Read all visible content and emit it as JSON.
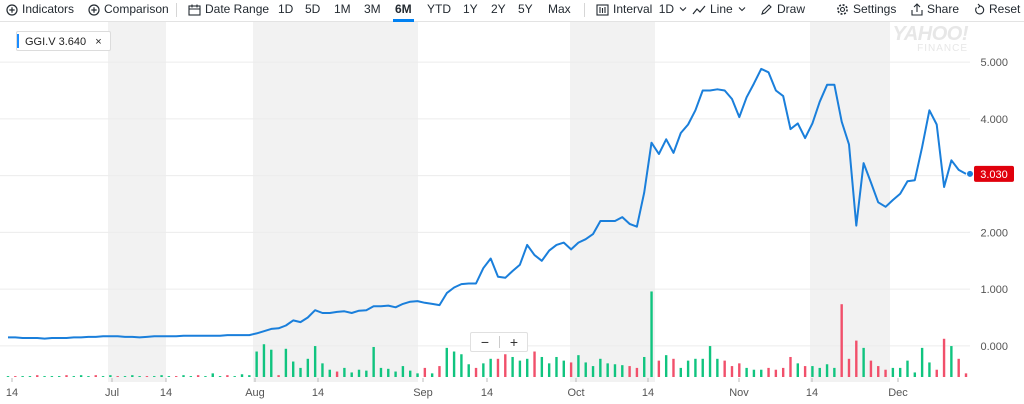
{
  "toolbar": {
    "indicators": "Indicators",
    "comparison": "Comparison",
    "date_range": "Date Range",
    "ranges": [
      "1D",
      "5D",
      "1M",
      "3M",
      "6M",
      "YTD",
      "1Y",
      "2Y",
      "5Y",
      "Max"
    ],
    "active_range": "6M",
    "interval": "Interval",
    "interval_value": "1D",
    "line": "Line",
    "draw": "Draw",
    "settings": "Settings",
    "share": "Share",
    "reset": "Reset"
  },
  "legend": {
    "symbol": "GGI.V",
    "value": "3.640",
    "close": "×"
  },
  "watermark": {
    "line1": "YAHOO!",
    "line2": "FINANCE"
  },
  "zoom": {
    "minus": "−",
    "plus": "+"
  },
  "colors": {
    "line": "#1a7fdb",
    "up_volume": "#10c47f",
    "down_volume": "#f1506b",
    "price_badge": "#e0000c",
    "shade": "#f2f2f2"
  },
  "chart_data": {
    "type": "line",
    "series": [
      {
        "name": "GGI.V",
        "values": [
          0.15,
          0.15,
          0.14,
          0.14,
          0.14,
          0.13,
          0.14,
          0.14,
          0.14,
          0.15,
          0.15,
          0.16,
          0.16,
          0.17,
          0.17,
          0.17,
          0.16,
          0.16,
          0.15,
          0.16,
          0.17,
          0.17,
          0.17,
          0.17,
          0.18,
          0.18,
          0.18,
          0.18,
          0.18,
          0.18,
          0.19,
          0.19,
          0.19,
          0.19,
          0.22,
          0.26,
          0.3,
          0.31,
          0.36,
          0.45,
          0.42,
          0.5,
          0.63,
          0.58,
          0.58,
          0.6,
          0.61,
          0.58,
          0.62,
          0.63,
          0.7,
          0.7,
          0.71,
          0.68,
          0.74,
          0.78,
          0.79,
          0.76,
          0.74,
          0.72,
          0.93,
          1.03,
          1.09,
          1.1,
          1.1,
          1.37,
          1.54,
          1.22,
          1.2,
          1.32,
          1.43,
          1.78,
          1.6,
          1.5,
          1.68,
          1.78,
          1.82,
          1.7,
          1.82,
          1.88,
          1.97,
          2.2,
          2.2,
          2.2,
          2.27,
          2.15,
          2.1,
          2.7,
          3.58,
          3.38,
          3.64,
          3.4,
          3.75,
          3.9,
          4.15,
          4.5,
          4.5,
          4.52,
          4.5,
          4.35,
          4.03,
          4.38,
          4.62,
          4.88,
          4.82,
          4.5,
          4.4,
          3.82,
          3.92,
          3.66,
          3.92,
          4.3,
          4.6,
          4.6,
          3.95,
          3.55,
          2.12,
          3.22,
          2.88,
          2.53,
          2.45,
          2.57,
          2.68,
          2.9,
          2.92,
          3.5,
          4.15,
          3.9,
          2.8,
          3.27,
          3.1,
          3.03
        ]
      }
    ],
    "volume": [
      0.01,
      0.01,
      0.01,
      0.01,
      0.02,
      0.01,
      0.01,
      0.01,
      0.02,
      0.01,
      0.02,
      0.01,
      0.02,
      0.01,
      0.02,
      0.01,
      0.01,
      0.02,
      0.01,
      0.01,
      0.01,
      0.02,
      0.01,
      0.01,
      0.02,
      0.01,
      0.02,
      0.01,
      0.04,
      0.01,
      0.02,
      0.01,
      0.03,
      0.02,
      0.28,
      0.36,
      0.3,
      0.02,
      0.31,
      0.17,
      0.1,
      0.2,
      0.34,
      0.15,
      0.08,
      0.06,
      0.1,
      0.05,
      0.08,
      0.07,
      0.33,
      0.1,
      0.09,
      0.06,
      0.12,
      0.07,
      0.04,
      0.1,
      0.04,
      0.12,
      0.32,
      0.28,
      0.25,
      0.14,
      0.1,
      0.15,
      0.2,
      0.2,
      0.25,
      0.22,
      0.18,
      0.2,
      0.28,
      0.22,
      0.15,
      0.22,
      0.18,
      0.16,
      0.24,
      0.16,
      0.12,
      0.2,
      0.15,
      0.14,
      0.13,
      0.12,
      0.1,
      0.22,
      0.94,
      0.18,
      0.24,
      0.2,
      0.1,
      0.18,
      0.2,
      0.2,
      0.34,
      0.2,
      0.18,
      0.12,
      0.15,
      0.1,
      0.08,
      0.08,
      0.1,
      0.08,
      0.1,
      0.22,
      0.15,
      0.12,
      0.12,
      0.1,
      0.14,
      0.1,
      0.8,
      0.2,
      0.4,
      0.32,
      0.18,
      0.12,
      0.08,
      0.1,
      0.1,
      0.18,
      0.05,
      0.32,
      0.16,
      0.08,
      0.42,
      0.34,
      0.2,
      0.04
    ],
    "volume_up": [
      1,
      0,
      1,
      1,
      0,
      1,
      1,
      1,
      0,
      1,
      1,
      1,
      0,
      1,
      1,
      0,
      1,
      1,
      1,
      0,
      1,
      1,
      1,
      0,
      1,
      1,
      0,
      1,
      1,
      1,
      0,
      1,
      1,
      1,
      1,
      1,
      1,
      0,
      1,
      1,
      1,
      1,
      1,
      1,
      1,
      0,
      1,
      1,
      1,
      1,
      1,
      1,
      1,
      1,
      1,
      1,
      1,
      0,
      1,
      0,
      1,
      1,
      1,
      1,
      0,
      1,
      1,
      0,
      0,
      1,
      1,
      1,
      0,
      1,
      1,
      1,
      1,
      0,
      1,
      1,
      1,
      1,
      1,
      1,
      1,
      0,
      0,
      1,
      1,
      0,
      1,
      0,
      1,
      1,
      1,
      1,
      1,
      1,
      0,
      0,
      0,
      1,
      1,
      1,
      0,
      0,
      0,
      0,
      1,
      0,
      1,
      1,
      1,
      1,
      0,
      0,
      0,
      1,
      0,
      0,
      0,
      1,
      1,
      1,
      1,
      1,
      1,
      0,
      0,
      1,
      0,
      0
    ],
    "ylim": [
      -0.6,
      5.6
    ],
    "yticks": [
      "5.000",
      "4.000",
      "3.000",
      "2.000",
      "1.000",
      "0.000"
    ],
    "xticks": [
      "14",
      "Jul",
      "14",
      "Aug",
      "14",
      "Sep",
      "14",
      "Oct",
      "14",
      "Nov",
      "14",
      "Dec"
    ],
    "last_price": "3.030",
    "grid": true
  }
}
